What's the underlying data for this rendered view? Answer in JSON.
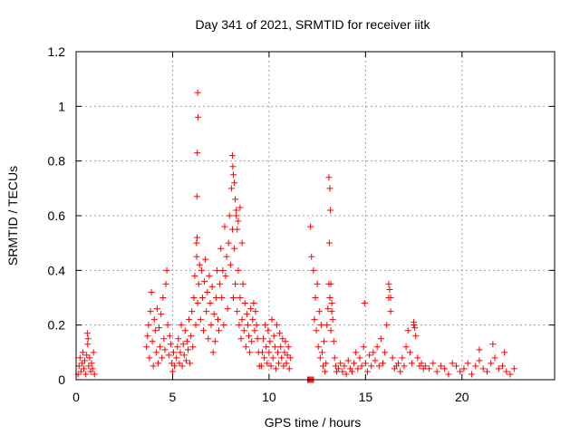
{
  "chart_data": {
    "type": "scatter",
    "title": "Day 341 of 2021, SRMTID for receiver iitk",
    "xlabel": "GPS time / hours",
    "ylabel": "SRMTID / TECUs",
    "xlim": [
      0,
      24.8
    ],
    "ylim": [
      0,
      1.2
    ],
    "xticks": [
      0,
      5,
      10,
      15,
      20
    ],
    "xtick_labels": [
      "0",
      "5",
      "10",
      "15",
      "20"
    ],
    "yticks": [
      0,
      0.2,
      0.4,
      0.6,
      0.8,
      1,
      1.2
    ],
    "ytick_labels": [
      "0",
      "0.2",
      "0.4",
      "0.6",
      "0.8",
      "1",
      "1.2"
    ],
    "grid": true,
    "marker": "+",
    "color": "#ff0000",
    "series": [
      {
        "name": "SRMTID",
        "x": [
          0.1,
          0.15,
          0.2,
          0.25,
          0.3,
          0.35,
          0.4,
          0.45,
          0.5,
          0.55,
          0.6,
          0.65,
          0.7,
          0.75,
          0.8,
          0.85,
          0.9,
          0.95,
          0.58,
          0.62,
          3.65,
          3.7,
          3.75,
          3.8,
          3.85,
          3.9,
          3.95,
          4.0,
          4.05,
          4.1,
          4.15,
          4.2,
          4.25,
          4.3,
          4.35,
          4.4,
          4.45,
          4.5,
          4.55,
          4.6,
          4.65,
          4.7,
          4.75,
          4.8,
          4.85,
          4.9,
          4.95,
          5.0,
          5.05,
          5.1,
          5.2,
          5.25,
          5.3,
          5.35,
          5.4,
          5.45,
          5.5,
          5.55,
          5.6,
          5.65,
          5.7,
          5.75,
          5.8,
          5.85,
          5.9,
          5.95,
          6.0,
          6.05,
          6.1,
          6.15,
          6.2,
          6.25,
          6.3,
          6.35,
          6.4,
          6.45,
          6.5,
          6.55,
          6.6,
          6.65,
          6.7,
          6.75,
          6.8,
          6.85,
          6.9,
          6.95,
          7.0,
          7.05,
          7.1,
          7.15,
          7.2,
          7.25,
          7.3,
          7.35,
          7.4,
          7.45,
          7.5,
          7.55,
          7.6,
          7.65,
          7.7,
          7.75,
          7.8,
          7.85,
          7.9,
          7.95,
          8.0,
          8.05,
          8.1,
          8.15,
          8.2,
          8.25,
          8.3,
          8.35,
          8.4,
          8.45,
          8.5,
          8.55,
          8.6,
          8.65,
          8.7,
          8.75,
          8.8,
          8.85,
          8.9,
          8.95,
          9.0,
          9.05,
          9.1,
          9.15,
          9.2,
          9.25,
          9.3,
          9.35,
          9.4,
          9.45,
          9.5,
          6.3,
          6.32,
          6.28,
          6.26,
          6.27,
          6.24,
          8.1,
          8.12,
          8.15,
          8.2,
          8.25,
          8.3,
          8.35,
          8.4,
          8.5,
          8.6,
          9.6,
          9.65,
          9.7,
          9.75,
          9.8,
          9.85,
          9.9,
          9.95,
          10.0,
          10.05,
          10.1,
          10.15,
          10.2,
          10.25,
          10.3,
          10.35,
          10.4,
          10.45,
          10.5,
          10.55,
          10.6,
          10.65,
          10.7,
          10.75,
          10.8,
          10.85,
          10.9,
          10.95,
          11.0,
          11.05,
          11.1,
          12.0,
          12.05,
          12.1,
          12.15,
          12.2,
          12.25,
          12.3,
          12.35,
          12.4,
          12.45,
          12.5,
          12.55,
          12.6,
          12.65,
          12.7,
          12.75,
          12.8,
          12.85,
          12.9,
          12.95,
          13.0,
          13.05,
          13.1,
          13.15,
          13.2,
          13.25,
          13.3,
          13.35,
          13.4,
          13.45,
          13.5,
          12.15,
          12.2,
          12.3,
          13.1,
          13.15,
          13.18,
          13.12,
          13.2,
          13.25,
          13.6,
          13.7,
          13.8,
          13.9,
          14.0,
          14.1,
          14.2,
          14.3,
          14.4,
          14.5,
          14.6,
          14.7,
          14.8,
          14.9,
          15.0,
          15.1,
          15.2,
          15.3,
          15.4,
          15.5,
          15.6,
          15.7,
          15.8,
          15.9,
          16.0,
          16.1,
          16.2,
          16.3,
          16.4,
          16.5,
          16.6,
          16.7,
          16.8,
          16.9,
          17.0,
          17.1,
          17.2,
          17.3,
          17.4,
          17.5,
          17.6,
          17.7,
          17.8,
          17.9,
          18.0,
          14.95,
          16.2,
          16.25,
          16.3,
          17.5,
          17.55,
          18.1,
          18.3,
          18.5,
          18.7,
          18.9,
          19.1,
          19.3,
          19.5,
          19.7,
          19.9,
          20.1,
          20.3,
          20.5,
          20.7,
          20.9,
          21.1,
          21.3,
          21.5,
          21.7,
          21.9,
          22.1,
          22.3,
          22.5,
          22.7,
          21.6,
          20.9,
          22.2
        ],
        "y": [
          0.02,
          0.05,
          0.08,
          0.03,
          0.06,
          0.1,
          0.04,
          0.07,
          0.02,
          0.09,
          0.13,
          0.05,
          0.08,
          0.03,
          0.06,
          0.04,
          0.1,
          0.02,
          0.17,
          0.15,
          0.12,
          0.16,
          0.2,
          0.08,
          0.25,
          0.32,
          0.14,
          0.05,
          0.22,
          0.18,
          0.1,
          0.26,
          0.06,
          0.19,
          0.12,
          0.24,
          0.08,
          0.3,
          0.15,
          0.11,
          0.35,
          0.4,
          0.2,
          0.09,
          0.16,
          0.13,
          0.06,
          0.03,
          0.1,
          0.05,
          0.08,
          0.12,
          0.15,
          0.06,
          0.1,
          0.2,
          0.05,
          0.13,
          0.09,
          0.18,
          0.07,
          0.14,
          0.11,
          0.22,
          0.06,
          0.16,
          0.25,
          0.12,
          0.3,
          0.38,
          0.2,
          0.45,
          0.28,
          0.35,
          0.42,
          0.22,
          0.4,
          0.3,
          0.18,
          0.36,
          0.44,
          0.25,
          0.32,
          0.15,
          0.38,
          0.28,
          0.2,
          0.34,
          0.1,
          0.24,
          0.14,
          0.3,
          0.4,
          0.22,
          0.18,
          0.35,
          0.48,
          0.3,
          0.4,
          0.2,
          0.56,
          0.38,
          0.45,
          0.26,
          0.5,
          0.6,
          0.42,
          0.7,
          0.55,
          0.3,
          0.48,
          0.35,
          0.62,
          0.25,
          0.4,
          0.2,
          0.3,
          0.15,
          0.22,
          0.35,
          0.18,
          0.28,
          0.12,
          0.24,
          0.2,
          0.16,
          0.1,
          0.26,
          0.14,
          0.22,
          0.28,
          0.18,
          0.25,
          0.2,
          0.15,
          0.1,
          0.05,
          1.05,
          0.96,
          0.83,
          0.67,
          0.52,
          0.5,
          0.82,
          0.78,
          0.75,
          0.72,
          0.66,
          0.6,
          0.55,
          0.58,
          0.63,
          0.5,
          0.05,
          0.1,
          0.15,
          0.08,
          0.2,
          0.12,
          0.06,
          0.18,
          0.1,
          0.14,
          0.05,
          0.22,
          0.08,
          0.16,
          0.12,
          0.04,
          0.2,
          0.1,
          0.06,
          0.17,
          0.12,
          0.08,
          0.15,
          0.05,
          0.1,
          0.14,
          0.06,
          0.09,
          0.12,
          0.04,
          0.08,
          0.0,
          0.0,
          0.0,
          0.0,
          0.0,
          0.0,
          0.0,
          0.22,
          0.3,
          0.18,
          0.35,
          0.12,
          0.25,
          0.08,
          0.2,
          0.1,
          0.05,
          0.14,
          0.03,
          0.06,
          0.2,
          0.26,
          0.35,
          0.3,
          0.18,
          0.25,
          0.22,
          0.14,
          0.08,
          0.05,
          0.03,
          0.56,
          0.45,
          0.4,
          0.74,
          0.7,
          0.62,
          0.5,
          0.35,
          0.28,
          0.04,
          0.06,
          0.03,
          0.05,
          0.02,
          0.07,
          0.04,
          0.03,
          0.06,
          0.1,
          0.04,
          0.08,
          0.05,
          0.12,
          0.06,
          0.03,
          0.09,
          0.05,
          0.1,
          0.07,
          0.12,
          0.05,
          0.15,
          0.06,
          0.1,
          0.2,
          0.3,
          0.25,
          0.08,
          0.04,
          0.05,
          0.06,
          0.03,
          0.08,
          0.05,
          0.12,
          0.18,
          0.1,
          0.06,
          0.2,
          0.16,
          0.08,
          0.05,
          0.06,
          0.04,
          0.28,
          0.35,
          0.33,
          0.3,
          0.21,
          0.19,
          0.05,
          0.04,
          0.06,
          0.03,
          0.05,
          0.04,
          0.02,
          0.06,
          0.05,
          0.03,
          0.04,
          0.06,
          0.02,
          0.05,
          0.07,
          0.04,
          0.03,
          0.06,
          0.08,
          0.04,
          0.05,
          0.03,
          0.02,
          0.04,
          0.13,
          0.11,
          0.1
        ]
      }
    ]
  }
}
